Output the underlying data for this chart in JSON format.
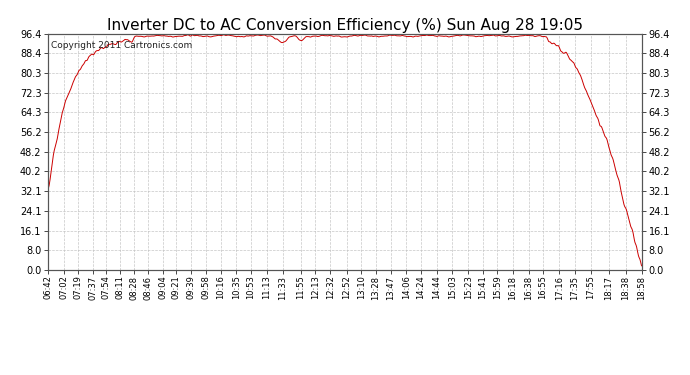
{
  "title": "Inverter DC to AC Conversion Efficiency (%) Sun Aug 28 19:05",
  "copyright": "Copyright 2011 Cartronics.com",
  "line_color": "#cc0000",
  "bg_color": "#ffffff",
  "plot_bg_color": "#ffffff",
  "grid_color": "#c0c0c0",
  "ytick_labels": [
    "0.0",
    "8.0",
    "16.1",
    "24.1",
    "32.1",
    "40.2",
    "48.2",
    "56.2",
    "64.3",
    "72.3",
    "80.3",
    "88.4",
    "96.4"
  ],
  "ytick_values": [
    0.0,
    8.0,
    16.1,
    24.1,
    32.1,
    40.2,
    48.2,
    56.2,
    64.3,
    72.3,
    80.3,
    88.4,
    96.4
  ],
  "xtick_labels": [
    "06:42",
    "07:02",
    "07:19",
    "07:37",
    "07:54",
    "08:11",
    "08:28",
    "08:46",
    "09:04",
    "09:21",
    "09:39",
    "09:58",
    "10:16",
    "10:35",
    "10:53",
    "11:13",
    "11:33",
    "11:55",
    "12:13",
    "12:32",
    "12:52",
    "13:10",
    "13:28",
    "13:47",
    "14:06",
    "14:24",
    "14:44",
    "15:03",
    "15:23",
    "15:41",
    "15:59",
    "16:18",
    "16:38",
    "16:55",
    "17:16",
    "17:35",
    "17:55",
    "18:17",
    "18:38",
    "18:58"
  ],
  "start_hhmm": "06:42",
  "end_hhmm": "18:58",
  "ymin": 0.0,
  "ymax": 96.4,
  "line_width": 0.7,
  "title_fontsize": 11,
  "tick_fontsize": 7,
  "copyright_fontsize": 6.5
}
